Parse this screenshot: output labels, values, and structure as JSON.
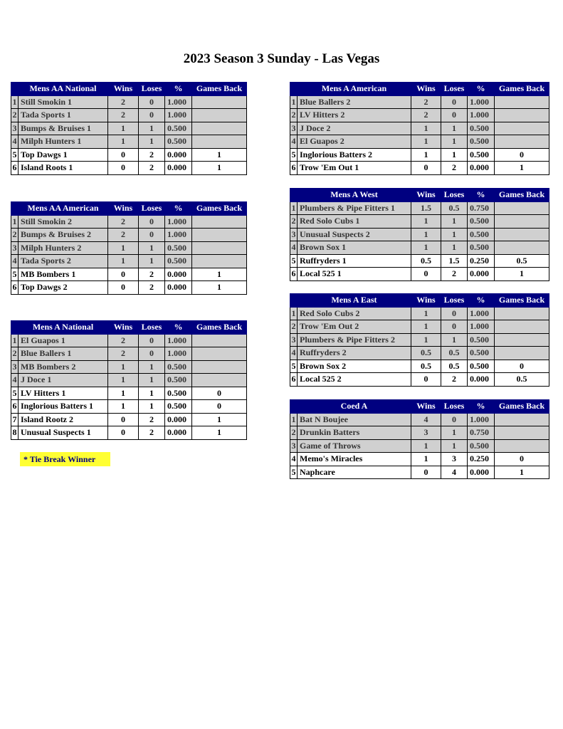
{
  "title": "2023 Season 3 Sunday - Las Vegas",
  "columns": [
    "Wins",
    "Loses",
    "%",
    "Games Back"
  ],
  "tie_break_note": "* Tie Break Winner",
  "colors": {
    "header_bg": "#000080",
    "header_text": "#ffffff",
    "qualified_row": "#d0d0d0",
    "note_bg": "#ffff33"
  },
  "tables": [
    {
      "name": "Mens AA National",
      "rows": [
        [
          "1",
          "Still Smokin 1",
          "2",
          "0",
          "1.000",
          "",
          true
        ],
        [
          "2",
          "Tada Sports 1",
          "2",
          "0",
          "1.000",
          "",
          true
        ],
        [
          "3",
          "Bumps & Bruises 1",
          "1",
          "1",
          "0.500",
          "",
          true
        ],
        [
          "4",
          "Milph Hunters 1",
          "1",
          "1",
          "0.500",
          "",
          true
        ],
        [
          "5",
          "Top Dawgs 1",
          "0",
          "2",
          "0.000",
          "1",
          false
        ],
        [
          "6",
          "Island Roots 1",
          "0",
          "2",
          "0.000",
          "1",
          false
        ]
      ]
    },
    {
      "name": "Mens AA American",
      "rows": [
        [
          "1",
          "Still Smokin 2",
          "2",
          "0",
          "1.000",
          "",
          true
        ],
        [
          "2",
          "Bumps & Bruises 2",
          "2",
          "0",
          "1.000",
          "",
          true
        ],
        [
          "3",
          "Milph Hunters 2",
          "1",
          "1",
          "0.500",
          "",
          true
        ],
        [
          "4",
          "Tada Sports 2",
          "1",
          "1",
          "0.500",
          "",
          true
        ],
        [
          "5",
          "MB Bombers 1",
          "0",
          "2",
          "0.000",
          "1",
          false
        ],
        [
          "6",
          "Top Dawgs 2",
          "0",
          "2",
          "0.000",
          "1",
          false
        ]
      ]
    },
    {
      "name": "Mens A National",
      "rows": [
        [
          "1",
          "El Guapos 1",
          "2",
          "0",
          "1.000",
          "",
          true
        ],
        [
          "2",
          "Blue Ballers 1",
          "2",
          "0",
          "1.000",
          "",
          true
        ],
        [
          "3",
          "MB Bombers 2",
          "1",
          "1",
          "0.500",
          "",
          true
        ],
        [
          "4",
          "J Doce 1",
          "1",
          "1",
          "0.500",
          "",
          true
        ],
        [
          "5",
          "LV Hitters 1",
          "1",
          "1",
          "0.500",
          "0",
          false
        ],
        [
          "6",
          "Inglorious Batters 1",
          "1",
          "1",
          "0.500",
          "0",
          false
        ],
        [
          "7",
          "Island Rootz 2",
          "0",
          "2",
          "0.000",
          "1",
          false
        ],
        [
          "8",
          "Unusual Suspects 1",
          "0",
          "2",
          "0.000",
          "1",
          false
        ]
      ]
    },
    {
      "name": "Mens A American",
      "rows": [
        [
          "1",
          "Blue Ballers 2",
          "2",
          "0",
          "1.000",
          "",
          true
        ],
        [
          "2",
          "LV Hitters 2",
          "2",
          "0",
          "1.000",
          "",
          true
        ],
        [
          "3",
          "J Doce 2",
          "1",
          "1",
          "0.500",
          "",
          true
        ],
        [
          "4",
          "El Guapos 2",
          "1",
          "1",
          "0.500",
          "",
          true
        ],
        [
          "5",
          "Inglorious Batters 2",
          "1",
          "1",
          "0.500",
          "0",
          false
        ],
        [
          "6",
          "Trow 'Em Out 1",
          "0",
          "2",
          "0.000",
          "1",
          false
        ]
      ]
    },
    {
      "name": "Mens A West",
      "rows": [
        [
          "1",
          "Plumbers & Pipe Fitters 1",
          "1.5",
          "0.5",
          "0.750",
          "",
          true
        ],
        [
          "2",
          "Red Solo Cubs 1",
          "1",
          "1",
          "0.500",
          "",
          true
        ],
        [
          "3",
          "Unusual Suspects 2",
          "1",
          "1",
          "0.500",
          "",
          true
        ],
        [
          "4",
          "Brown Sox 1",
          "1",
          "1",
          "0.500",
          "",
          true
        ],
        [
          "5",
          "Ruffryders 1",
          "0.5",
          "1.5",
          "0.250",
          "0.5",
          false
        ],
        [
          "6",
          "Local 525 1",
          "0",
          "2",
          "0.000",
          "1",
          false
        ]
      ]
    },
    {
      "name": "Mens A East",
      "rows": [
        [
          "1",
          "Red Solo Cubs 2",
          "1",
          "0",
          "1.000",
          "",
          true
        ],
        [
          "2",
          "Trow 'Em Out 2",
          "1",
          "0",
          "1.000",
          "",
          true
        ],
        [
          "3",
          "Plumbers & Pipe Fitters 2",
          "1",
          "1",
          "0.500",
          "",
          true
        ],
        [
          "4",
          "Ruffryders 2",
          "0.5",
          "0.5",
          "0.500",
          "",
          true
        ],
        [
          "5",
          "Brown Sox 2",
          "0.5",
          "0.5",
          "0.500",
          "0",
          false
        ],
        [
          "6",
          "Local 525 2",
          "0",
          "2",
          "0.000",
          "0.5",
          false
        ]
      ]
    },
    {
      "name": "Coed A",
      "rows": [
        [
          "1",
          "Bat N Boujee",
          "4",
          "0",
          "1.000",
          "",
          true
        ],
        [
          "2",
          "Drunkin Batters",
          "3",
          "1",
          "0.750",
          "",
          true
        ],
        [
          "3",
          "Game of Throws",
          "1",
          "1",
          "0.500",
          "",
          true
        ],
        [
          "4",
          "Memo's Miracles",
          "1",
          "3",
          "0.250",
          "0",
          false
        ],
        [
          "5",
          "Naphcare",
          "0",
          "4",
          "0.000",
          "1",
          false
        ]
      ]
    }
  ]
}
